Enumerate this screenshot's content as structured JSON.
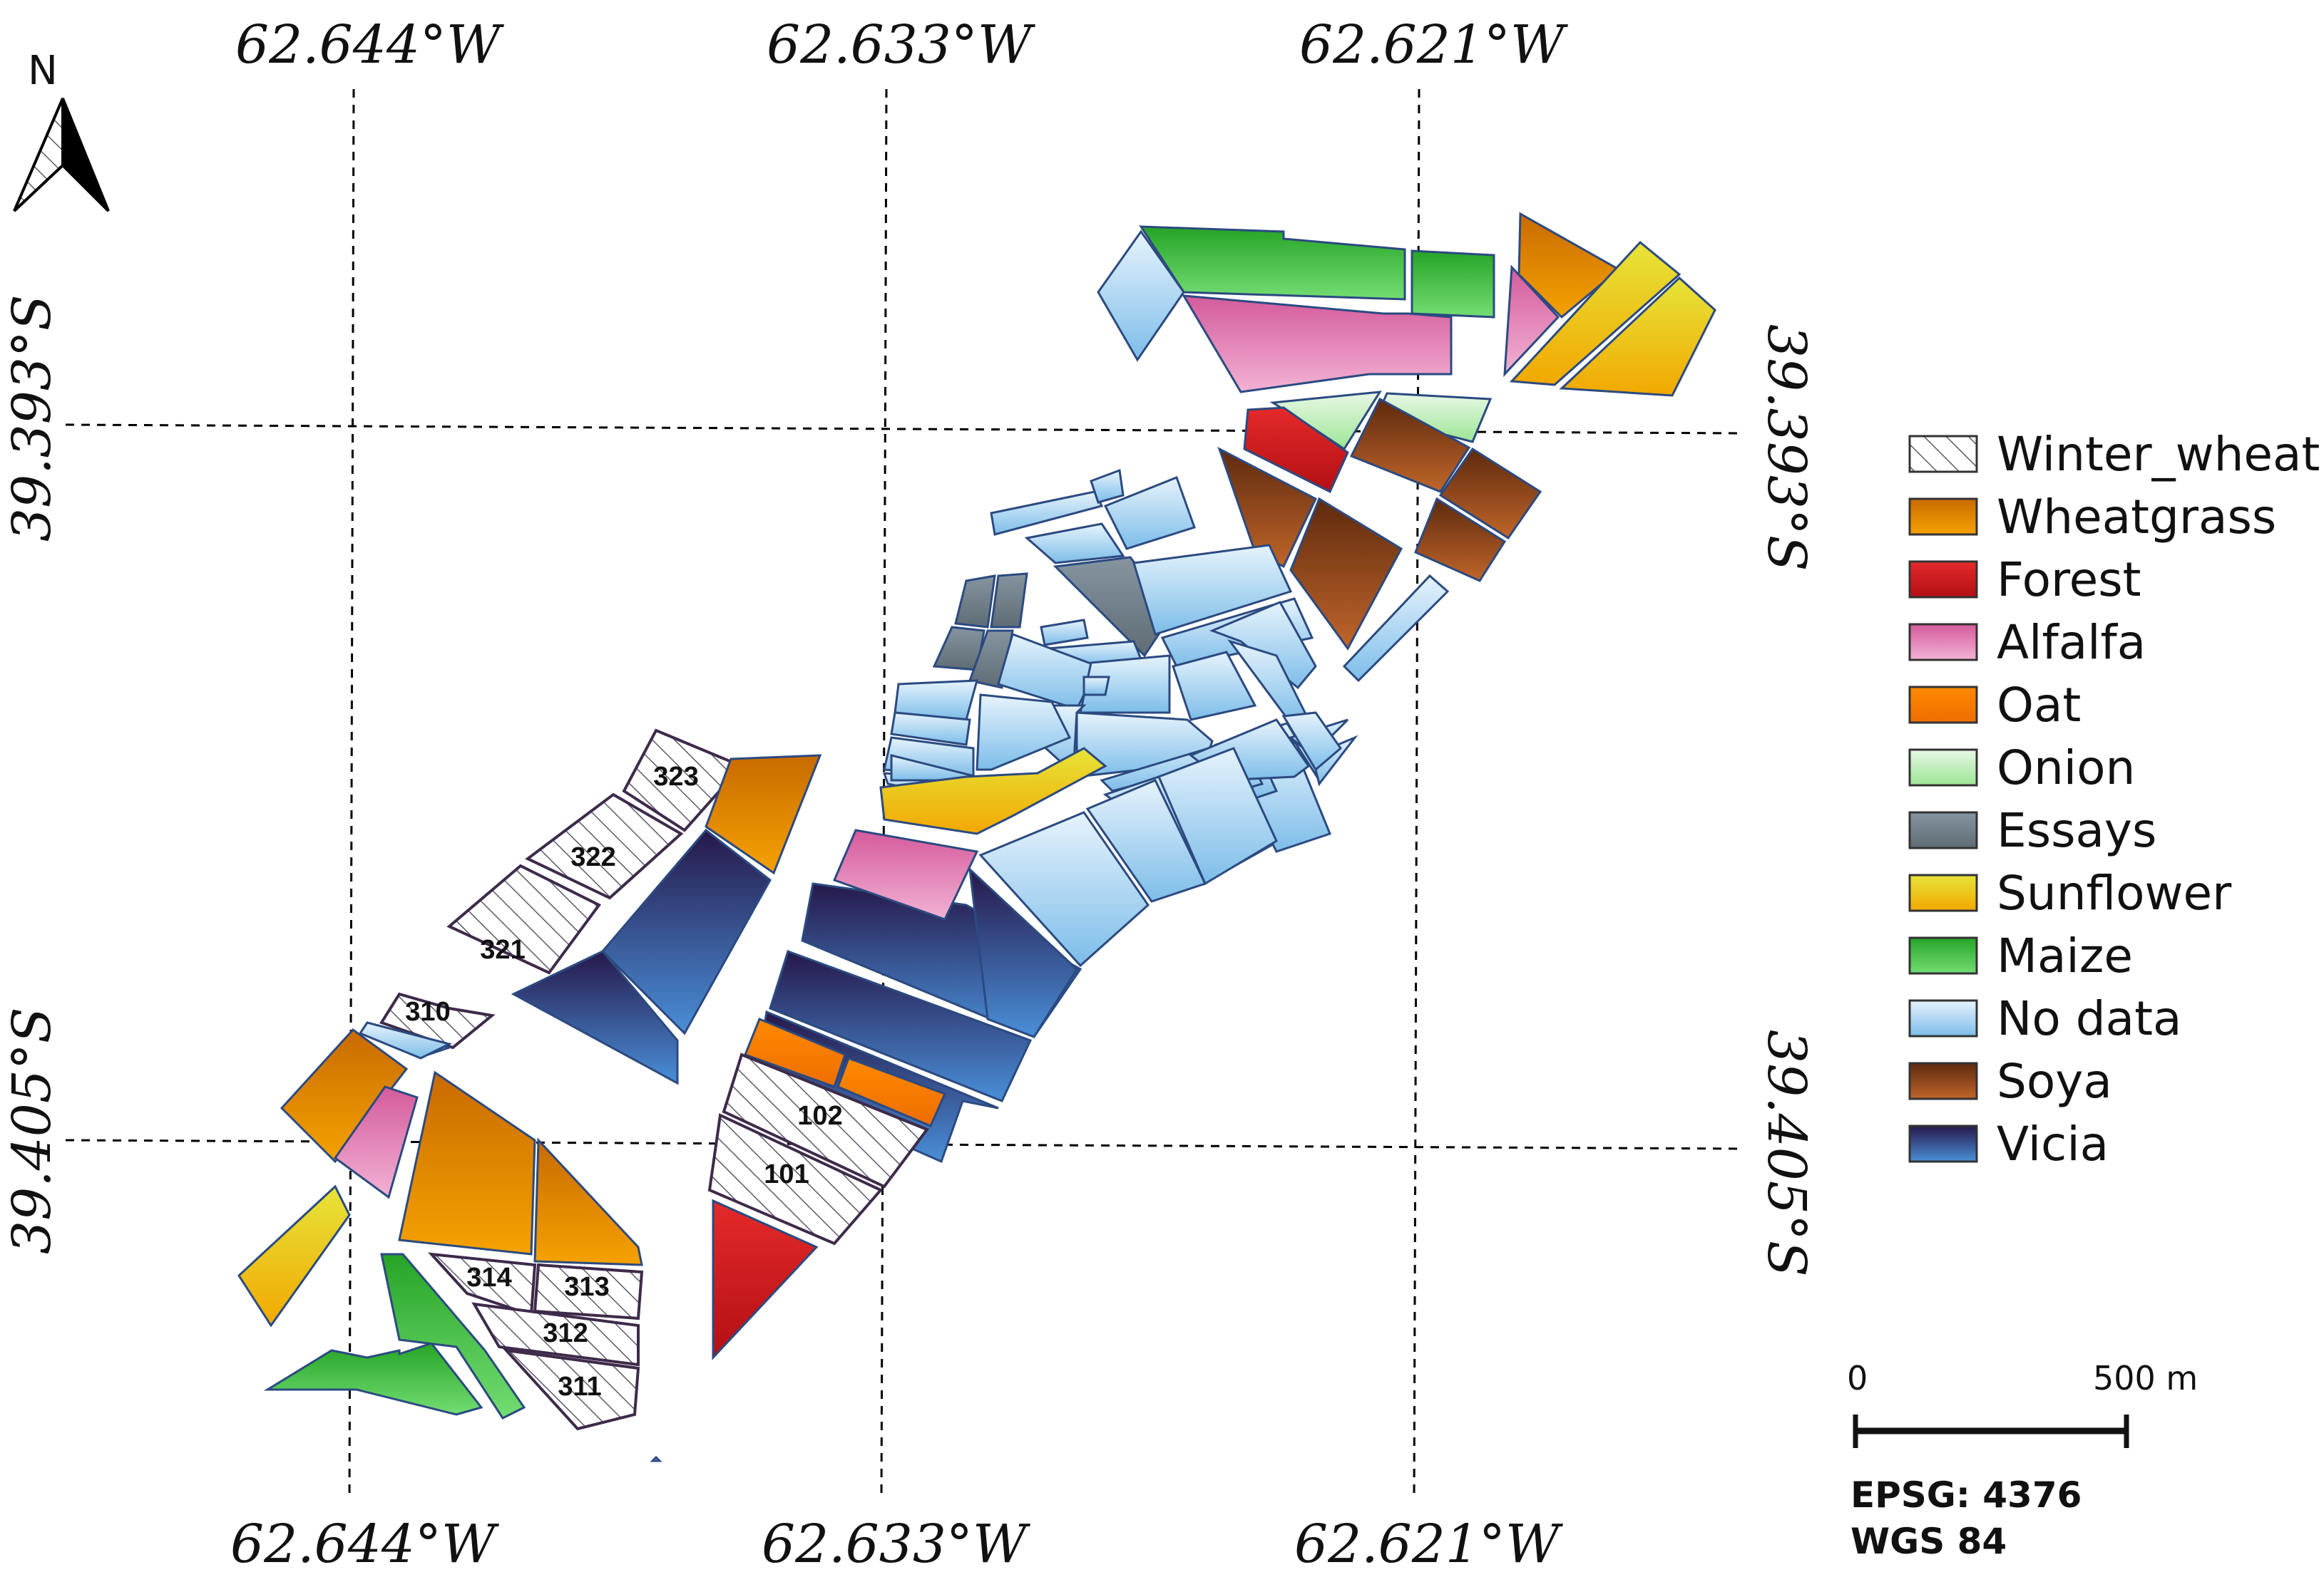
{
  "north": {
    "label": "N"
  },
  "graticule": {
    "lon_top": [
      "62.644°W",
      "62.633°W",
      "62.621°W"
    ],
    "lon_bottom": [
      "62.644°W",
      "62.633°W",
      "62.621°W"
    ],
    "lat_left": [
      "39.393°S",
      "39.405°S"
    ],
    "lat_right": [
      "39.393°S",
      "39.405°S"
    ]
  },
  "parcel_labels": [
    "323",
    "322",
    "321",
    "310",
    "102",
    "101",
    "314",
    "313",
    "312",
    "311"
  ],
  "legend": [
    {
      "label": "Winter_wheat",
      "color": "#e9e6f0",
      "pattern": "hatch"
    },
    {
      "label": "Wheatgrass",
      "color": "#e08a00"
    },
    {
      "label": "Forest",
      "color": "#d9141c"
    },
    {
      "label": "Alfalfa",
      "color": "#e38ab9"
    },
    {
      "label": "Oat",
      "color": "#ff7f00"
    },
    {
      "label": "Onion",
      "color": "#b9eeb3"
    },
    {
      "label": "Essays",
      "color": "#6f7f8a"
    },
    {
      "label": "Sunflower",
      "color": "#f0c00f"
    },
    {
      "label": "Maize",
      "color": "#3cba3c"
    },
    {
      "label": "No data",
      "color": "#a9d2f5"
    },
    {
      "label": "Soya",
      "color": "#8b4513"
    },
    {
      "label": "Vicia",
      "color": "#2a4a8f"
    }
  ],
  "scale_bar": {
    "start_label": "0",
    "end_label": "500 m"
  },
  "crs": {
    "epsg": "EPSG: 4376",
    "datum": "WGS 84"
  }
}
